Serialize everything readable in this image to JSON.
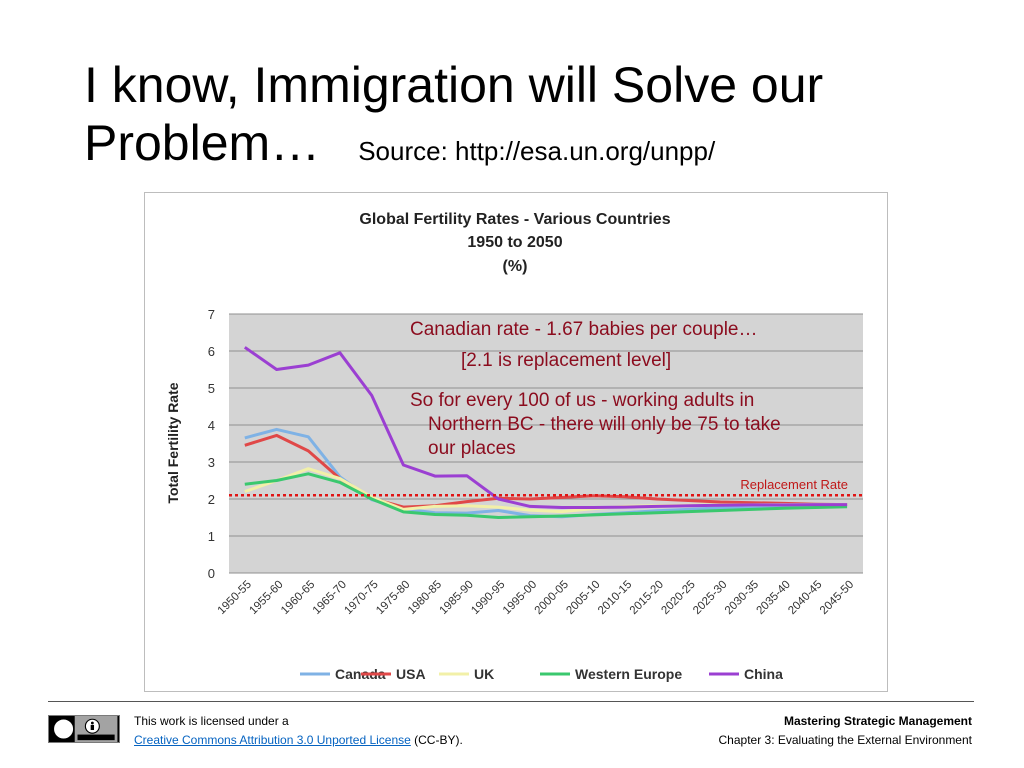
{
  "slide": {
    "title": "I know, Immigration will Solve our Problem…",
    "source": "Source: http://esa.un.org/unpp/"
  },
  "annotations": {
    "canadian_rate": "Canadian rate - 1.67 babies per couple…",
    "replacement_note": "[2.1 is replacement level]",
    "summary_line1": "So for every 100 of us - working adults in",
    "summary_line2": "Northern BC - there will only be 75 to take",
    "summary_line3": "our places"
  },
  "footer": {
    "license_text": "This work is licensed under a",
    "license_link": "Creative Commons Attribution 3.0 Unported License",
    "license_suffix": " (CC-BY).",
    "book_title": "Mastering Strategic Management",
    "chapter": "Chapter 3: Evaluating the External Environment"
  },
  "colors": {
    "accent": "#8b0c1e",
    "replacement_line": "#e01515",
    "plot_background": "#d4d4d4"
  },
  "chart_data": {
    "type": "line",
    "title": "Global Fertility Rates -  Various Countries",
    "subtitle_1": "1950 to 2050",
    "subtitle_2": "(%)",
    "xlabel": "",
    "ylabel": "Total Fertility Rate",
    "ylim": [
      0,
      7
    ],
    "yticks": [
      0,
      1,
      2,
      3,
      4,
      5,
      6,
      7
    ],
    "grid": true,
    "legend": "bottom",
    "categories": [
      "1950-55",
      "1955-60",
      "1960-65",
      "1965-70",
      "1970-75",
      "1975-80",
      "1980-85",
      "1985-90",
      "1990-95",
      "1995-00",
      "2000-05",
      "2005-10",
      "2010-15",
      "2015-20",
      "2020-25",
      "2025-30",
      "2030-35",
      "2035-40",
      "2040-45",
      "2045-50"
    ],
    "reference_line": {
      "value": 2.1,
      "label": "Replacement Rate",
      "color": "#e01515"
    },
    "series": [
      {
        "name": "Canada",
        "color": "#7fb2e5",
        "values": [
          3.65,
          3.88,
          3.68,
          2.6,
          1.98,
          1.73,
          1.63,
          1.62,
          1.69,
          1.55,
          1.52,
          1.58,
          1.63,
          1.68,
          1.72,
          1.76,
          1.79,
          1.81,
          1.83,
          1.84
        ]
      },
      {
        "name": "USA",
        "color": "#e04848",
        "values": [
          3.45,
          3.72,
          3.3,
          2.55,
          2.02,
          1.78,
          1.82,
          1.93,
          2.02,
          2.0,
          2.04,
          2.09,
          2.06,
          2.0,
          1.96,
          1.92,
          1.9,
          1.88,
          1.86,
          1.85
        ]
      },
      {
        "name": "UK",
        "color": "#f2f0a8",
        "values": [
          2.2,
          2.5,
          2.82,
          2.55,
          2.05,
          1.72,
          1.8,
          1.82,
          1.78,
          1.7,
          1.66,
          1.74,
          1.8,
          1.82,
          1.83,
          1.84,
          1.84,
          1.85,
          1.85,
          1.85
        ]
      },
      {
        "name": "Western Europe",
        "color": "#3ac86e",
        "values": [
          2.4,
          2.5,
          2.68,
          2.45,
          2.0,
          1.65,
          1.58,
          1.56,
          1.5,
          1.52,
          1.54,
          1.57,
          1.6,
          1.63,
          1.66,
          1.69,
          1.72,
          1.75,
          1.77,
          1.79
        ]
      },
      {
        "name": "China",
        "color": "#9b3fd2",
        "values": [
          6.1,
          5.5,
          5.62,
          5.95,
          4.8,
          2.92,
          2.62,
          2.63,
          2.0,
          1.8,
          1.77,
          1.77,
          1.78,
          1.8,
          1.82,
          1.83,
          1.84,
          1.84,
          1.85,
          1.85
        ]
      }
    ]
  }
}
